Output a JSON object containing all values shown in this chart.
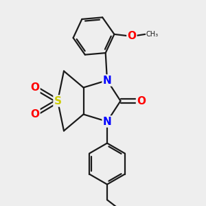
{
  "bg_color": "#eeeeee",
  "bond_color": "#1a1a1a",
  "bond_width": 1.6,
  "atom_colors": {
    "N": "#0000ff",
    "O": "#ff0000",
    "S": "#cccc00",
    "C": "#1a1a1a"
  }
}
